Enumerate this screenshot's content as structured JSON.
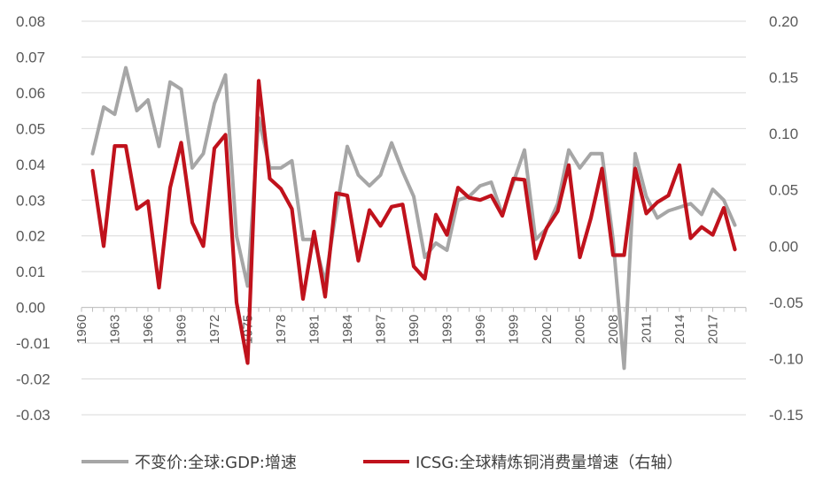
{
  "chart_data": {
    "type": "line",
    "x": [
      1961,
      1962,
      1963,
      1964,
      1965,
      1966,
      1967,
      1968,
      1969,
      1970,
      1971,
      1972,
      1973,
      1974,
      1975,
      1976,
      1977,
      1978,
      1979,
      1980,
      1981,
      1982,
      1983,
      1984,
      1985,
      1986,
      1987,
      1988,
      1989,
      1990,
      1991,
      1992,
      1993,
      1994,
      1995,
      1996,
      1997,
      1998,
      1999,
      2000,
      2001,
      2002,
      2003,
      2004,
      2005,
      2006,
      2007,
      2008,
      2009,
      2010,
      2011,
      2012,
      2013,
      2014,
      2015,
      2016,
      2017,
      2018,
      2019
    ],
    "x_tick_labels": [
      "1960",
      "1963",
      "1966",
      "1969",
      "1972",
      "1975",
      "1978",
      "1981",
      "1984",
      "1987",
      "1990",
      "1993",
      "1996",
      "1999",
      "2002",
      "2005",
      "2008",
      "2011",
      "2014",
      "2017"
    ],
    "left_axis": {
      "ylim": [
        -0.03,
        0.08
      ],
      "tick_labels": [
        "0.08",
        "0.07",
        "0.06",
        "0.05",
        "0.04",
        "0.03",
        "0.02",
        "0.01",
        "0.00",
        "-0.01",
        "-0.02",
        "-0.03"
      ]
    },
    "right_axis": {
      "ylim": [
        -0.15,
        0.2
      ],
      "tick_labels": [
        "0.20",
        "0.15",
        "0.10",
        "0.05",
        "0.00",
        "-0.05",
        "-0.10",
        "-0.15"
      ]
    },
    "series": [
      {
        "name": "不变价:全球:GDP:增速",
        "axis": "left",
        "color": "#a6a6a6",
        "values": [
          0.043,
          0.056,
          0.054,
          0.067,
          0.055,
          0.058,
          0.045,
          0.063,
          0.061,
          0.039,
          0.043,
          0.057,
          0.065,
          0.02,
          0.006,
          0.053,
          0.039,
          0.039,
          0.041,
          0.019,
          0.019,
          0.007,
          0.027,
          0.045,
          0.037,
          0.034,
          0.037,
          0.046,
          0.038,
          0.031,
          0.014,
          0.018,
          0.016,
          0.03,
          0.031,
          0.034,
          0.035,
          0.026,
          0.035,
          0.044,
          0.019,
          0.022,
          0.029,
          0.044,
          0.039,
          0.043,
          0.043,
          0.019,
          -0.017,
          0.043,
          0.031,
          0.025,
          0.027,
          0.028,
          0.029,
          0.026,
          0.033,
          0.03,
          0.023
        ]
      },
      {
        "name": "ICSG:全球精炼铜消费量增速（右轴）",
        "axis": "right",
        "color": "#c0121c",
        "values": [
          0.067,
          0.0,
          0.089,
          0.089,
          0.033,
          0.04,
          -0.037,
          0.052,
          0.092,
          0.021,
          0.0,
          0.087,
          0.099,
          -0.05,
          -0.104,
          0.147,
          0.06,
          0.051,
          0.033,
          -0.047,
          0.013,
          -0.045,
          0.047,
          0.045,
          -0.013,
          0.032,
          0.018,
          0.035,
          0.037,
          -0.018,
          -0.029,
          0.028,
          0.01,
          0.052,
          0.043,
          0.041,
          0.045,
          0.027,
          0.06,
          0.059,
          -0.011,
          0.016,
          0.031,
          0.072,
          -0.01,
          0.025,
          0.069,
          -0.008,
          -0.008,
          0.069,
          0.029,
          0.039,
          0.045,
          0.072,
          0.007,
          0.017,
          0.01,
          0.034,
          -0.003
        ]
      }
    ],
    "legend": {
      "placement": "bottom",
      "entries": [
        "不变价:全球:GDP:增速",
        "ICSG:全球精炼铜消费量增速（右轴）"
      ]
    },
    "grid": "horizontal"
  }
}
